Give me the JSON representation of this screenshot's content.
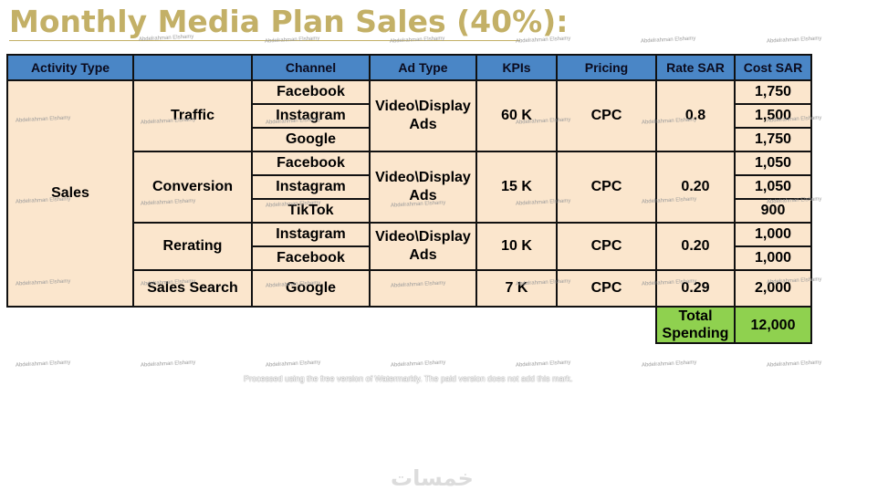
{
  "title": "Monthly Media Plan Sales (40%):",
  "headers": [
    "Activity Type",
    "",
    "Channel",
    "Ad Type",
    "KPIs",
    "Pricing",
    "Rate SAR",
    "Cost SAR"
  ],
  "activity": "Sales",
  "groups": [
    {
      "name": "Traffic",
      "ad_type": "Video\\Display Ads",
      "kpi": "60 K",
      "pricing": "CPC",
      "rate": "0.8",
      "rows": [
        {
          "channel": "Facebook",
          "cost": "1,750"
        },
        {
          "channel": "Instagram",
          "cost": "1,500"
        },
        {
          "channel": "Google",
          "cost": "1,750"
        }
      ]
    },
    {
      "name": "Conversion",
      "ad_type": "Video\\Display Ads",
      "kpi": "15 K",
      "pricing": "CPC",
      "rate": "0.20",
      "rows": [
        {
          "channel": "Facebook",
          "cost": "1,050"
        },
        {
          "channel": "Instagram",
          "cost": "1,050"
        },
        {
          "channel": "TikTok",
          "cost": "900"
        }
      ]
    },
    {
      "name": "Rerating",
      "ad_type": "Video\\Display Ads",
      "kpi": "10 K",
      "pricing": "CPC",
      "rate": "0.20",
      "rows": [
        {
          "channel": "Instagram",
          "cost": "1,000"
        },
        {
          "channel": "Facebook",
          "cost": "1,000"
        }
      ]
    },
    {
      "name": "Sales Search",
      "ad_type": "",
      "kpi": "7 K",
      "pricing": "CPC",
      "rate": "0.29",
      "rows": [
        {
          "channel": "Google",
          "cost": "2,000"
        }
      ]
    }
  ],
  "total_label": "Total Spending",
  "total_value": "12,000",
  "watermark": "Abdelrahman Elshamy",
  "notice": "Processed using the free version of Watermarkly. The paid version does not add this mark.",
  "logo_text": "خمسات"
}
